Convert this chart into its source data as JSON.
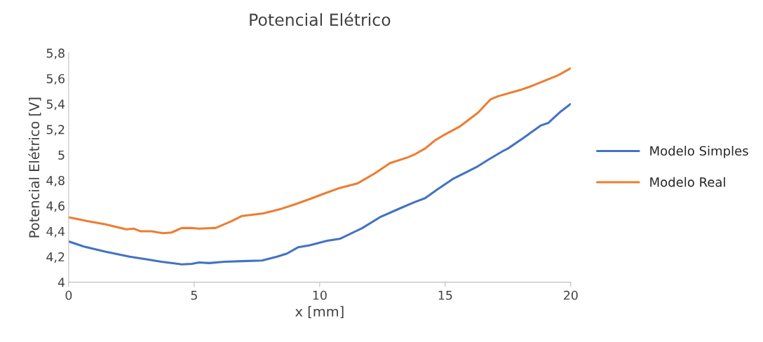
{
  "chart_data": {
    "type": "line",
    "title": "Potencial Elétrico",
    "xlabel": "x [mm]",
    "ylabel": "Potencial Elétrico [V]",
    "xlim": [
      0,
      20
    ],
    "xticks": [
      0,
      5,
      10,
      15,
      20
    ],
    "ylim": [
      4,
      5.8
    ],
    "yticks": [
      4,
      {
        "value": 4.2,
        "label": "4,2"
      },
      {
        "value": 4.4,
        "label": "4,4"
      },
      {
        "value": 4.6,
        "label": "4,6"
      },
      {
        "value": 4.8,
        "label": "4,8"
      },
      5,
      {
        "value": 5.2,
        "label": "5,2"
      },
      {
        "value": 5.4,
        "label": "5,4"
      },
      {
        "value": 5.6,
        "label": "5,6"
      },
      {
        "value": 5.8,
        "label": "5,8"
      }
    ],
    "grid": false,
    "legend": "right",
    "marker": "none",
    "line_style": "solid",
    "series": [
      {
        "name": "Modelo Simples",
        "color": "#4472c4",
        "x": [
          0,
          0.6,
          1.45,
          2.43,
          3.1,
          3.7,
          4.5,
          4.9,
          5.2,
          5.6,
          6.2,
          6.9,
          7.7,
          8.3,
          8.7,
          9.15,
          9.6,
          10.3,
          10.8,
          11.7,
          12.4,
          13.2,
          13.8,
          14.2,
          14.7,
          15.3,
          15.9,
          16.3,
          16.7,
          17.3,
          17.5,
          18.1,
          18.8,
          19.1,
          19.6,
          20
        ],
        "values": [
          4.32,
          4.28,
          4.24,
          4.2,
          4.18,
          4.16,
          4.14,
          4.144,
          4.155,
          4.15,
          4.16,
          4.165,
          4.17,
          4.2,
          4.225,
          4.275,
          4.29,
          4.325,
          4.34,
          4.425,
          4.51,
          4.58,
          4.63,
          4.66,
          4.73,
          4.81,
          4.87,
          4.91,
          4.96,
          5.03,
          5.05,
          5.13,
          5.23,
          5.25,
          5.34,
          5.4
        ]
      },
      {
        "name": "Modelo Real",
        "color": "#ed7d31",
        "x": [
          0,
          0.75,
          1.45,
          2.3,
          2.6,
          2.85,
          3.3,
          3.75,
          4.1,
          4.5,
          4.95,
          5.2,
          5.7,
          5.85,
          6.5,
          6.9,
          7.75,
          8.45,
          9.0,
          9.7,
          10.1,
          10.8,
          11.5,
          12.2,
          12.8,
          13.5,
          13.8,
          14.2,
          14.6,
          14.9,
          15.6,
          16.3,
          16.8,
          17.1,
          18.0,
          18.5,
          19.0,
          19.5,
          20
        ],
        "values": [
          4.51,
          4.48,
          4.455,
          4.415,
          4.42,
          4.4,
          4.4,
          4.385,
          4.39,
          4.425,
          4.425,
          4.42,
          4.425,
          4.425,
          4.48,
          4.52,
          4.54,
          4.575,
          4.61,
          4.66,
          4.69,
          4.74,
          4.775,
          4.855,
          4.935,
          4.98,
          5.005,
          5.05,
          5.115,
          5.15,
          5.225,
          5.33,
          5.435,
          5.46,
          5.51,
          5.545,
          5.585,
          5.625,
          5.68
        ]
      }
    ]
  }
}
